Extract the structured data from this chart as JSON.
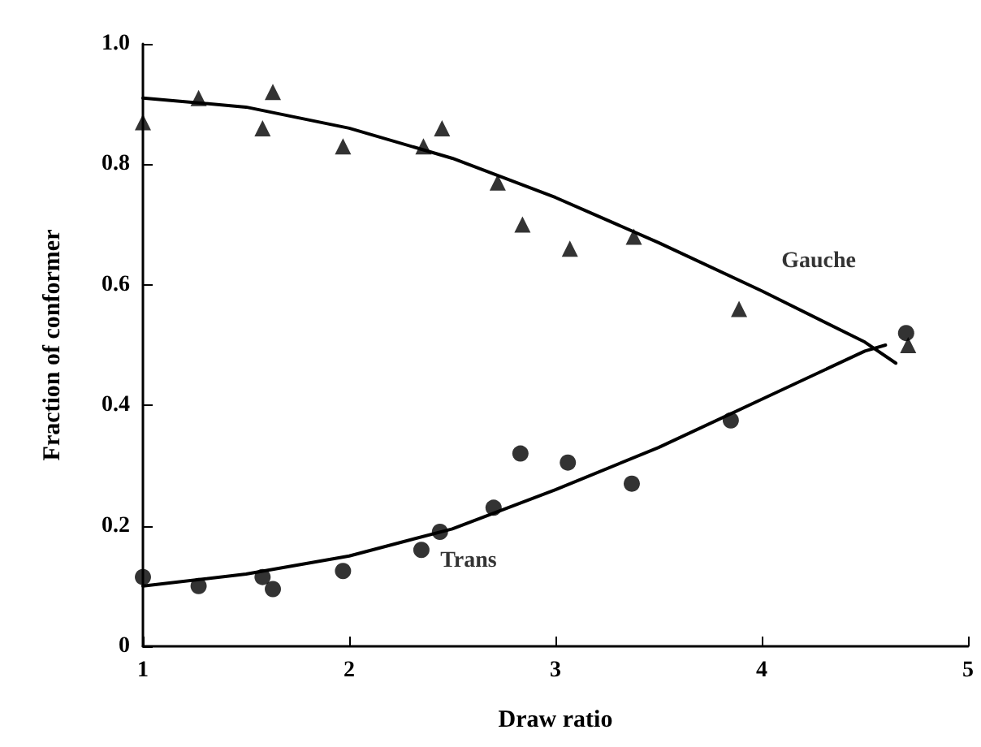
{
  "chart_data": {
    "type": "scatter",
    "xlabel": "Draw ratio",
    "ylabel": "Fraction of conformer",
    "xlim": [
      1,
      5
    ],
    "xticks": [
      1,
      2,
      3,
      4,
      5
    ],
    "ylim": [
      0,
      1
    ],
    "yticks": [
      0,
      0.2,
      0.4,
      0.6,
      0.8,
      {
        "value": 1,
        "label": "1.0"
      }
    ],
    "grid": false,
    "series": [
      {
        "type": "scatter",
        "marker": "triangle",
        "color": "#000000",
        "x": [
          1.0,
          1.27,
          1.58,
          1.63,
          1.97,
          2.36,
          2.45,
          2.72,
          2.84,
          3.07,
          3.38,
          3.89,
          4.71
        ],
        "values": [
          0.87,
          0.91,
          0.86,
          0.92,
          0.83,
          0.83,
          0.86,
          0.77,
          0.7,
          0.66,
          0.68,
          0.56,
          0.5
        ]
      },
      {
        "type": "scatter",
        "marker": "circle",
        "color": "#000000",
        "x": [
          1.0,
          1.27,
          1.58,
          1.63,
          1.97,
          2.35,
          2.44,
          2.7,
          2.83,
          3.06,
          3.37,
          3.85,
          4.7
        ],
        "values": [
          0.115,
          0.1,
          0.115,
          0.095,
          0.125,
          0.16,
          0.19,
          0.23,
          0.32,
          0.305,
          0.27,
          0.375,
          0.52
        ]
      },
      {
        "type": "line",
        "marker": "none",
        "color": "#000000",
        "x": [
          1.0,
          1.5,
          2.0,
          2.5,
          3.0,
          3.5,
          4.0,
          4.5,
          4.65
        ],
        "values": [
          0.91,
          0.895,
          0.86,
          0.81,
          0.745,
          0.67,
          0.59,
          0.505,
          0.47
        ]
      },
      {
        "type": "line",
        "marker": "none",
        "color": "#000000",
        "x": [
          1.0,
          1.5,
          2.0,
          2.5,
          3.0,
          3.5,
          4.0,
          4.5,
          4.6
        ],
        "values": [
          0.1,
          0.12,
          0.15,
          0.195,
          0.26,
          0.33,
          0.41,
          0.49,
          0.5
        ]
      }
    ],
    "annotations": [
      {
        "text": "Gauche",
        "x": 4.0,
        "y": 0.59
      },
      {
        "text": "Trans",
        "x": 2.5,
        "y": 0.195
      }
    ]
  }
}
